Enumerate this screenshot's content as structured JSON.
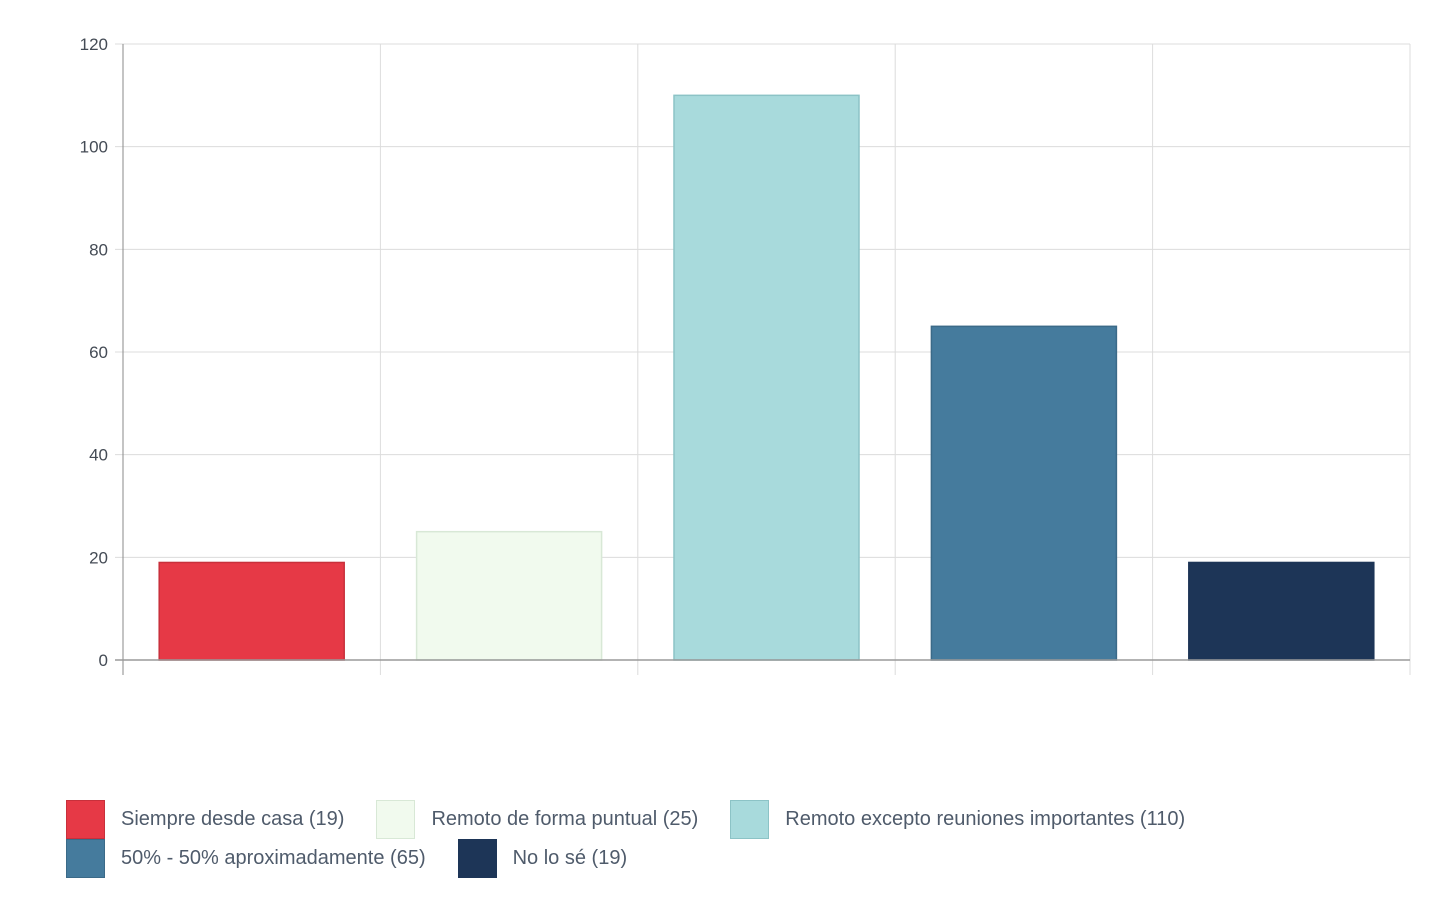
{
  "chart_data": {
    "type": "bar",
    "title": "",
    "xlabel": "",
    "ylabel": "",
    "ylim": [
      0,
      120
    ],
    "y_ticks": [
      0,
      20,
      40,
      60,
      80,
      100,
      120
    ],
    "grid": true,
    "legend_position": "bottom-left",
    "categories": [
      "Siempre desde casa (19)",
      "Remoto de forma puntual (25)",
      "Remoto excepto reuniones importantes (110)",
      "50% - 50% aproximadamente (65)",
      "No lo sé (19)"
    ],
    "values": [
      19,
      25,
      110,
      65,
      19
    ],
    "colors": [
      "#e63946",
      "#f1faee",
      "#a8dadc",
      "#457b9d",
      "#1d3557"
    ],
    "border_colors": [
      "#c8303b",
      "#d8e8d6",
      "#8cc3c6",
      "#3b6a88",
      "#1d3557"
    ]
  }
}
